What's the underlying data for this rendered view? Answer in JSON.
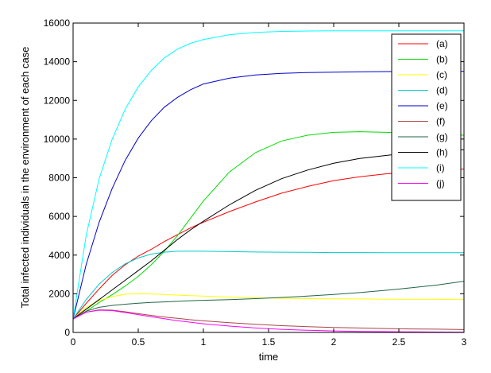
{
  "chart_data": {
    "type": "line",
    "title": "",
    "xlabel": "time",
    "ylabel": "Total infected individuals in the environment of each case",
    "xlim": [
      0,
      3
    ],
    "ylim": [
      0,
      16000
    ],
    "xticks": [
      0,
      0.5,
      1,
      1.5,
      2,
      2.5,
      3
    ],
    "xtick_labels": [
      "0",
      "0.5",
      "1",
      "1.5",
      "2",
      "2.5",
      "3"
    ],
    "yticks": [
      0,
      2000,
      4000,
      6000,
      8000,
      10000,
      12000,
      14000,
      16000
    ],
    "ytick_labels": [
      "0",
      "2000",
      "4000",
      "6000",
      "8000",
      "10000",
      "12000",
      "14000",
      "16000"
    ],
    "grid": false,
    "legend_position": "top-right",
    "x": [
      0,
      0.1,
      0.2,
      0.3,
      0.4,
      0.5,
      0.6,
      0.7,
      0.8,
      0.9,
      1.0,
      1.2,
      1.4,
      1.6,
      1.8,
      2.0,
      2.2,
      2.4,
      2.6,
      2.8,
      3.0
    ],
    "series": [
      {
        "name": "(a)",
        "color": "#ff0000",
        "values": [
          700,
          1500,
          2250,
          2950,
          3500,
          3950,
          4300,
          4700,
          5050,
          5400,
          5700,
          6250,
          6750,
          7200,
          7550,
          7850,
          8050,
          8200,
          8300,
          8400,
          8450
        ]
      },
      {
        "name": "(b)",
        "color": "#00dd00",
        "values": [
          700,
          1100,
          1550,
          1950,
          2400,
          2900,
          3500,
          4200,
          5000,
          5900,
          6800,
          8300,
          9300,
          9900,
          10200,
          10350,
          10380,
          10350,
          10300,
          10250,
          10200
        ]
      },
      {
        "name": "(c)",
        "color": "#ffff00",
        "values": [
          700,
          1300,
          1650,
          1850,
          1980,
          2000,
          1990,
          1960,
          1930,
          1900,
          1880,
          1830,
          1790,
          1770,
          1750,
          1740,
          1730,
          1720,
          1710,
          1710,
          1700
        ]
      },
      {
        "name": "(d)",
        "color": "#00cccc",
        "values": [
          700,
          1700,
          2500,
          3100,
          3550,
          3850,
          4050,
          4150,
          4200,
          4200,
          4200,
          4180,
          4160,
          4150,
          4140,
          4130,
          4130,
          4120,
          4120,
          4120,
          4120
        ]
      },
      {
        "name": "(e)",
        "color": "#0000cc",
        "values": [
          700,
          3500,
          5700,
          7450,
          8900,
          10050,
          10950,
          11650,
          12150,
          12550,
          12850,
          13150,
          13320,
          13400,
          13440,
          13460,
          13480,
          13490,
          13500,
          13500,
          13500
        ]
      },
      {
        "name": "(f)",
        "color": "#aa4444",
        "values": [
          700,
          1050,
          1170,
          1150,
          1070,
          970,
          880,
          800,
          730,
          660,
          600,
          500,
          420,
          350,
          300,
          260,
          230,
          200,
          180,
          170,
          150
        ]
      },
      {
        "name": "(g)",
        "color": "#226644",
        "values": [
          700,
          1100,
          1300,
          1400,
          1460,
          1510,
          1550,
          1580,
          1610,
          1640,
          1660,
          1700,
          1750,
          1810,
          1880,
          1960,
          2060,
          2180,
          2310,
          2460,
          2650
        ]
      },
      {
        "name": "(h)",
        "color": "#000000",
        "values": [
          700,
          1200,
          1700,
          2200,
          2700,
          3200,
          3700,
          4250,
          4800,
          5300,
          5750,
          6600,
          7350,
          7950,
          8400,
          8750,
          9000,
          9150,
          9300,
          9400,
          9450
        ]
      },
      {
        "name": "(i)",
        "color": "#00ffff",
        "values": [
          700,
          5000,
          7950,
          10000,
          11550,
          12700,
          13550,
          14200,
          14650,
          14950,
          15150,
          15400,
          15520,
          15570,
          15590,
          15600,
          15600,
          15600,
          15600,
          15600,
          15600
        ]
      },
      {
        "name": "(j)",
        "color": "#ff00ff",
        "values": [
          700,
          1050,
          1150,
          1130,
          1030,
          920,
          810,
          710,
          610,
          530,
          450,
          330,
          230,
          160,
          110,
          80,
          55,
          40,
          30,
          20,
          15
        ]
      }
    ]
  }
}
